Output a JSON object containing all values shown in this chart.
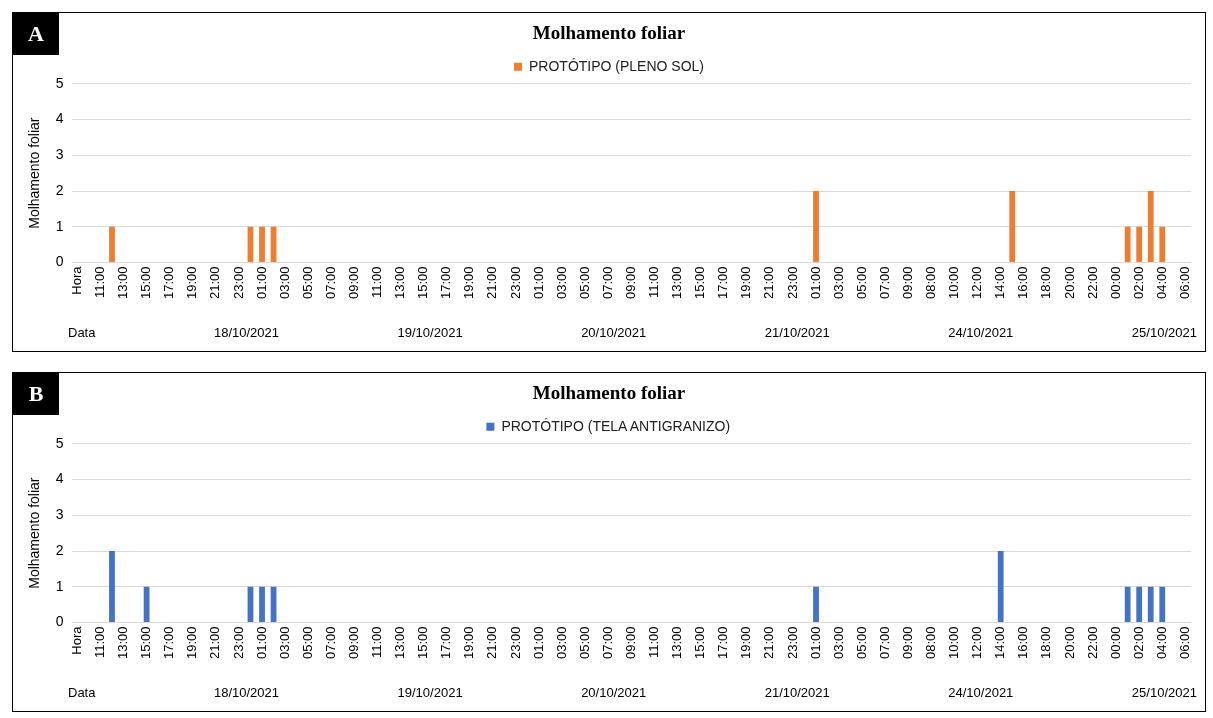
{
  "chart_data": [
    {
      "type": "bar",
      "title": "Molhamento foliar",
      "ylabel": "Molhamento foliar",
      "legend": "top",
      "grid": "y",
      "ylim": [
        0,
        5
      ],
      "yticks": [
        0,
        1,
        2,
        3,
        4,
        5
      ],
      "categories": [
        "Hora",
        null,
        "11:00",
        null,
        "13:00",
        null,
        "15:00",
        null,
        "17:00",
        null,
        "19:00",
        null,
        "21:00",
        null,
        "23:00",
        null,
        "01:00",
        null,
        "03:00",
        null,
        "05:00",
        null,
        "07:00",
        null,
        "09:00",
        null,
        "11:00",
        null,
        "13:00",
        null,
        "15:00",
        null,
        "17:00",
        null,
        "19:00",
        null,
        "21:00",
        null,
        "23:00",
        null,
        "01:00",
        null,
        "03:00",
        null,
        "05:00",
        null,
        "07:00",
        null,
        "09:00",
        null,
        "11:00",
        null,
        "13:00",
        null,
        "15:00",
        null,
        "17:00",
        null,
        "19:00",
        null,
        "21:00",
        null,
        "23:00",
        null,
        "01:00",
        null,
        "03:00",
        null,
        "05:00",
        null,
        "07:00",
        null,
        "09:00",
        null,
        "08:00",
        null,
        "10:00",
        null,
        "12:00",
        null,
        "14:00",
        null,
        "16:00",
        null,
        "18:00",
        null,
        "20:00",
        null,
        "22:00",
        null,
        "00:00",
        null,
        "02:00",
        null,
        "04:00",
        null,
        "06:00"
      ],
      "series": [
        {
          "name": "PROTÓTIPO (PLENO SOL)",
          "color": "#ed7d31",
          "values": [
            0,
            0,
            0,
            1,
            0,
            0,
            0,
            0,
            0,
            0,
            0,
            0,
            0,
            0,
            0,
            1,
            1,
            1,
            0,
            0,
            0,
            0,
            0,
            0,
            0,
            0,
            0,
            0,
            0,
            0,
            0,
            0,
            0,
            0,
            0,
            0,
            0,
            0,
            0,
            0,
            0,
            0,
            0,
            0,
            0,
            0,
            0,
            0,
            0,
            0,
            0,
            0,
            0,
            0,
            0,
            0,
            0,
            0,
            0,
            0,
            0,
            0,
            0,
            0,
            2,
            0,
            0,
            0,
            0,
            0,
            0,
            0,
            0,
            0,
            0,
            0,
            0,
            0,
            0,
            0,
            0,
            2,
            0,
            0,
            0,
            0,
            0,
            0,
            0,
            0,
            0,
            1,
            1,
            2,
            1,
            0,
            0
          ]
        }
      ],
      "annotations": [
        "A",
        "Data",
        "18/10/2021",
        "19/10/2021",
        "20/10/2021",
        "21/10/2021",
        "24/10/2021",
        "25/10/2021"
      ]
    },
    {
      "type": "bar",
      "title": "Molhamento foliar",
      "ylabel": "Molhamento foliar",
      "legend": "top",
      "grid": "y",
      "ylim": [
        0,
        5
      ],
      "yticks": [
        0,
        1,
        2,
        3,
        4,
        5
      ],
      "categories": [
        "Hora",
        null,
        "11:00",
        null,
        "13:00",
        null,
        "15:00",
        null,
        "17:00",
        null,
        "19:00",
        null,
        "21:00",
        null,
        "23:00",
        null,
        "01:00",
        null,
        "03:00",
        null,
        "05:00",
        null,
        "07:00",
        null,
        "09:00",
        null,
        "11:00",
        null,
        "13:00",
        null,
        "15:00",
        null,
        "17:00",
        null,
        "19:00",
        null,
        "21:00",
        null,
        "23:00",
        null,
        "01:00",
        null,
        "03:00",
        null,
        "05:00",
        null,
        "07:00",
        null,
        "09:00",
        null,
        "11:00",
        null,
        "13:00",
        null,
        "15:00",
        null,
        "17:00",
        null,
        "19:00",
        null,
        "21:00",
        null,
        "23:00",
        null,
        "01:00",
        null,
        "03:00",
        null,
        "05:00",
        null,
        "07:00",
        null,
        "09:00",
        null,
        "08:00",
        null,
        "10:00",
        null,
        "12:00",
        null,
        "14:00",
        null,
        "16:00",
        null,
        "18:00",
        null,
        "20:00",
        null,
        "22:00",
        null,
        "00:00",
        null,
        "02:00",
        null,
        "04:00",
        null,
        "06:00"
      ],
      "series": [
        {
          "name": "PROTÓTIPO (TELA ANTIGRANIZO)",
          "color": "#4472c4",
          "values": [
            0,
            0,
            0,
            2,
            0,
            0,
            1,
            0,
            0,
            0,
            0,
            0,
            0,
            0,
            0,
            1,
            1,
            1,
            0,
            0,
            0,
            0,
            0,
            0,
            0,
            0,
            0,
            0,
            0,
            0,
            0,
            0,
            0,
            0,
            0,
            0,
            0,
            0,
            0,
            0,
            0,
            0,
            0,
            0,
            0,
            0,
            0,
            0,
            0,
            0,
            0,
            0,
            0,
            0,
            0,
            0,
            0,
            0,
            0,
            0,
            0,
            0,
            0,
            0,
            1,
            0,
            0,
            0,
            0,
            0,
            0,
            0,
            0,
            0,
            0,
            0,
            0,
            0,
            0,
            0,
            2,
            0,
            0,
            0,
            0,
            0,
            0,
            0,
            0,
            0,
            0,
            1,
            1,
            1,
            1,
            0,
            0
          ]
        }
      ],
      "annotations": [
        "B",
        "Data",
        "18/10/2021",
        "19/10/2021",
        "20/10/2021",
        "21/10/2021",
        "24/10/2021",
        "25/10/2021"
      ]
    }
  ]
}
